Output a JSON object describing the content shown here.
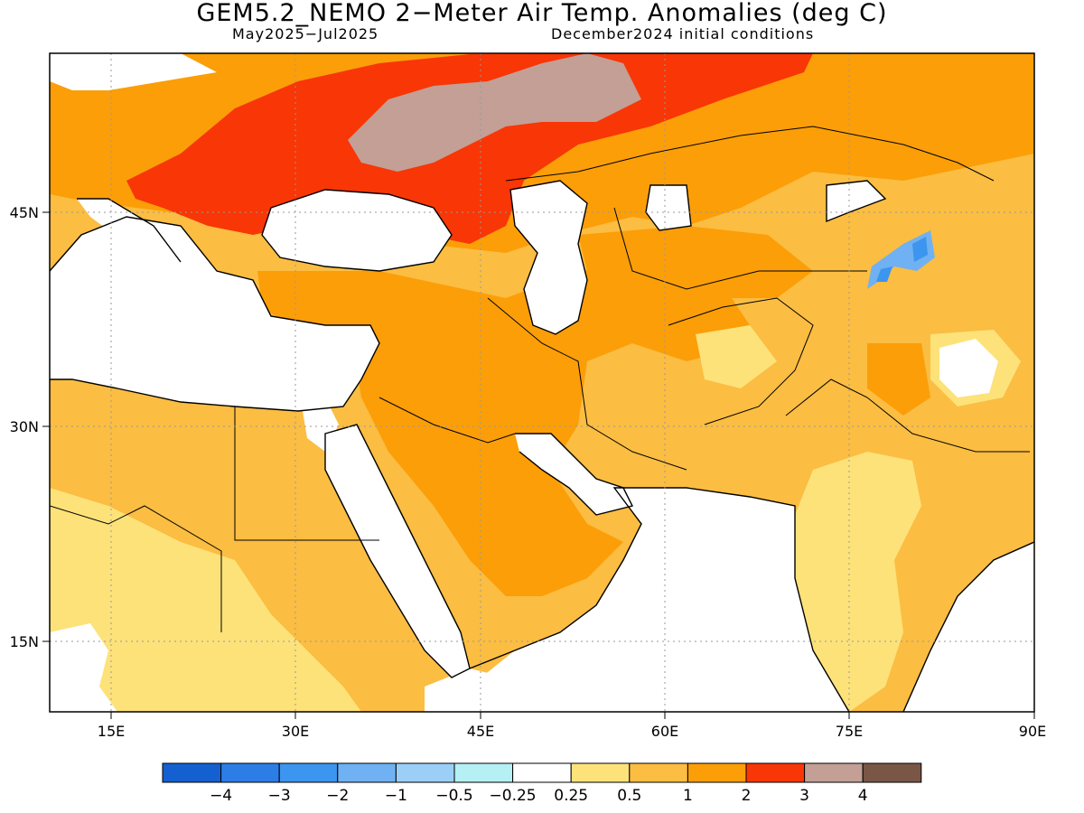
{
  "title": "GEM5.2_NEMO 2−Meter Air Temp. Anomalies (deg C)",
  "subtitle_left": "May2025−Jul2025",
  "subtitle_right": "December2024 initial conditions",
  "lon_ticks": [
    "15E",
    "30E",
    "45E",
    "60E",
    "75E",
    "90E"
  ],
  "lat_ticks": [
    "45N",
    "30N",
    "15N"
  ],
  "colorbar": {
    "colors": [
      "#1560d0",
      "#2c7ee6",
      "#3c95ee",
      "#6fb1f2",
      "#9ccff7",
      "#b4f0f4",
      "#ffffff",
      "#fde27a",
      "#fbbd42",
      "#fb9e08",
      "#f83606",
      "#c39f96",
      "#7a5646"
    ],
    "labels": [
      "−4",
      "−3",
      "−2",
      "−1",
      "−0.5",
      "−0.25",
      "0.25",
      "0.5",
      "1",
      "2",
      "3",
      "4"
    ]
  },
  "colors": {
    "ocean": "#ffffff",
    "anom_0_25_0_5": "#fde27a",
    "anom_0_5_1": "#fbbd42",
    "anom_1_2": "#fb9e08",
    "anom_2_3": "#f83606",
    "anom_3_4": "#c39f96",
    "anom_neg_1_2": "#6fb1f2",
    "anom_neg_2_3": "#3c95ee"
  }
}
